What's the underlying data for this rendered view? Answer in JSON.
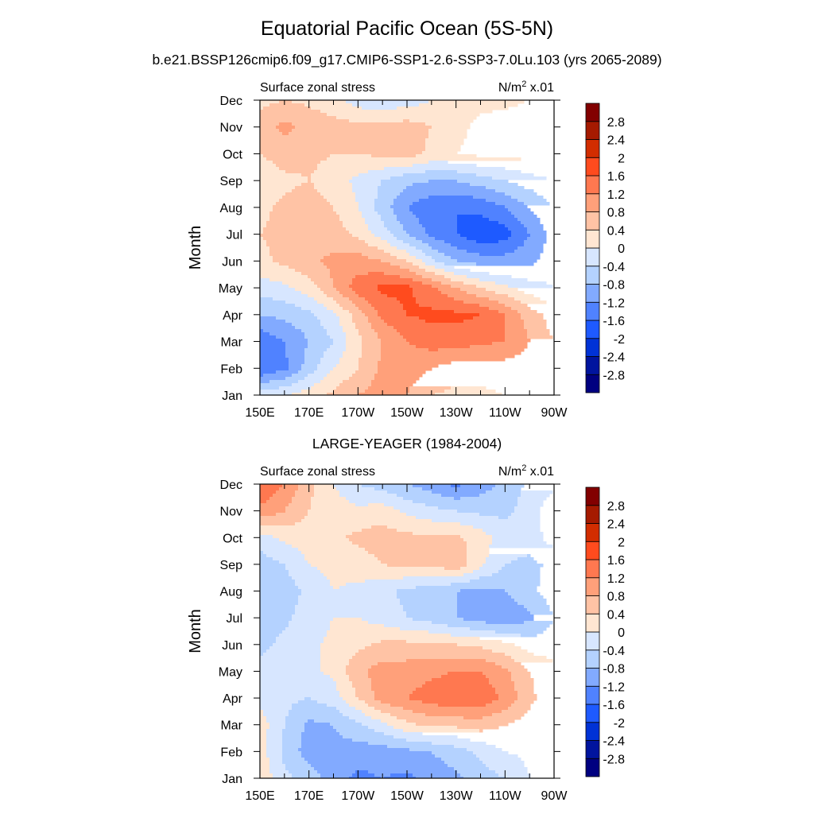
{
  "title": "Equatorial Pacific Ocean (5S-5N)",
  "subtitle": "b.e21.BSSP126cmip6.f09_g17.CMIP6-SSP1-2.6-SSP3-7.0Lu.103 (yrs 2065-2089)",
  "chart_data": [
    {
      "type": "heatmap",
      "title": "",
      "left_label": "Surface zonal stress",
      "units": "N/m",
      "units_sup": "2",
      "units_suffix": " x.01",
      "xlabel": "",
      "ylabel": "Month",
      "x_lon_east": [
        150,
        160,
        170,
        180,
        190,
        200,
        210,
        220,
        230,
        240,
        250,
        260,
        270
      ],
      "x_tick_labels": [
        "150E",
        "170E",
        "170W",
        "150W",
        "130W",
        "110W",
        "90W"
      ],
      "y_tick_labels": [
        "Jan",
        "Feb",
        "Mar",
        "Apr",
        "May",
        "Jun",
        "Jul",
        "Aug",
        "Sep",
        "Oct",
        "Nov",
        "Dec"
      ],
      "levels": [
        -2.8,
        -2.4,
        -2,
        -1.6,
        -1.2,
        -0.8,
        -0.4,
        0,
        0.4,
        0.8,
        1.2,
        1.6,
        2,
        2.4,
        2.8
      ],
      "values": [
        [
          -0.2,
          0.0,
          0.2,
          0.5,
          0.8,
          1.0,
          0.8,
          0.4,
          0.3,
          0.3,
          0.4,
          0.5,
          0.4
        ],
        [
          -1.6,
          -1.3,
          -0.6,
          0.0,
          0.4,
          0.9,
          1.0,
          0.8,
          0.6,
          0.6,
          0.6,
          0.6,
          0.4
        ],
        [
          -1.5,
          -1.2,
          -0.8,
          -0.4,
          0.3,
          0.8,
          1.2,
          1.4,
          1.4,
          1.3,
          1.2,
          0.8,
          0.4
        ],
        [
          -0.8,
          -0.7,
          -0.5,
          -0.1,
          0.6,
          1.3,
          1.6,
          1.7,
          1.7,
          1.6,
          1.2,
          0.6,
          0.2
        ],
        [
          -0.2,
          -0.1,
          0.2,
          0.8,
          1.4,
          1.7,
          1.7,
          1.3,
          0.8,
          0.4,
          0.1,
          -0.2,
          -0.4
        ],
        [
          0.3,
          0.5,
          0.7,
          0.9,
          1.0,
          0.8,
          0.4,
          -0.3,
          -0.8,
          -1.0,
          -1.0,
          -0.9,
          -0.6
        ],
        [
          0.4,
          0.5,
          0.7,
          0.6,
          0.3,
          -0.2,
          -0.8,
          -1.3,
          -1.6,
          -1.9,
          -1.8,
          -1.2,
          -0.6
        ],
        [
          0.3,
          0.5,
          0.6,
          0.4,
          0.0,
          -0.6,
          -1.2,
          -1.5,
          -1.6,
          -1.5,
          -1.2,
          -0.8,
          -0.4
        ],
        [
          0.1,
          0.3,
          0.4,
          0.2,
          -0.1,
          -0.4,
          -0.7,
          -0.8,
          -0.8,
          -0.6,
          -0.4,
          -0.2,
          0.0
        ],
        [
          0.4,
          0.6,
          0.5,
          0.4,
          0.4,
          0.5,
          0.6,
          0.3,
          0.4,
          0.5,
          0.5,
          0.6,
          0.5
        ],
        [
          0.6,
          0.9,
          0.7,
          0.6,
          0.5,
          0.5,
          0.6,
          0.4,
          0.3,
          0.5,
          0.6,
          0.7,
          0.6
        ],
        [
          0.3,
          0.4,
          0.3,
          0.1,
          -0.2,
          -0.3,
          -0.2,
          0.0,
          0.2,
          0.3,
          0.3,
          0.4,
          0.4
        ]
      ]
    },
    {
      "type": "heatmap",
      "title": "LARGE-YEAGER (1984-2004)",
      "left_label": "Surface zonal stress",
      "units": "N/m",
      "units_sup": "2",
      "units_suffix": " x.01",
      "xlabel": "",
      "ylabel": "Month",
      "x_lon_east": [
        150,
        160,
        170,
        180,
        190,
        200,
        210,
        220,
        230,
        240,
        250,
        260,
        270
      ],
      "x_tick_labels": [
        "150E",
        "170E",
        "170W",
        "150W",
        "130W",
        "110W",
        "90W"
      ],
      "y_tick_labels": [
        "Jan",
        "Feb",
        "Mar",
        "Apr",
        "May",
        "Jun",
        "Jul",
        "Aug",
        "Sep",
        "Oct",
        "Nov",
        "Dec"
      ],
      "levels": [
        -2.8,
        -2.4,
        -2,
        -1.6,
        -1.2,
        -0.8,
        -0.4,
        0,
        0.4,
        0.8,
        1.2,
        1.6,
        2,
        2.4,
        2.8
      ],
      "values": [
        [
          0.3,
          -0.3,
          -0.6,
          -1.0,
          -1.3,
          -1.2,
          -1.3,
          -1.0,
          -0.9,
          -0.6,
          -0.4,
          0.0,
          0.2
        ],
        [
          0.2,
          -0.5,
          -1.0,
          -0.9,
          -1.0,
          -1.0,
          -0.9,
          -0.8,
          -0.6,
          -0.3,
          0.0,
          0.1,
          0.3
        ],
        [
          0.2,
          -0.4,
          -0.9,
          -0.8,
          -0.5,
          -0.1,
          0.3,
          0.5,
          0.5,
          0.6,
          0.4,
          0.2,
          0.2
        ],
        [
          -0.1,
          -0.3,
          -0.4,
          -0.2,
          0.4,
          1.0,
          1.2,
          1.4,
          1.6,
          1.5,
          1.1,
          0.5,
          0.1
        ],
        [
          -0.3,
          -0.2,
          -0.1,
          0.1,
          0.7,
          1.0,
          1.0,
          1.1,
          1.2,
          1.2,
          0.9,
          0.4,
          0.1
        ],
        [
          -0.5,
          -0.3,
          -0.1,
          0.1,
          0.3,
          0.5,
          0.5,
          0.5,
          0.4,
          0.3,
          0.1,
          -0.2,
          -0.2
        ],
        [
          -0.6,
          -0.5,
          -0.2,
          0.0,
          0.0,
          -0.2,
          -0.4,
          -0.6,
          -0.8,
          -1.0,
          -1.1,
          -0.9,
          -0.4
        ],
        [
          -0.8,
          -0.6,
          -0.3,
          0.0,
          -0.1,
          -0.3,
          -0.5,
          -0.6,
          -0.8,
          -0.9,
          -0.8,
          -0.5,
          -0.2
        ],
        [
          -0.6,
          -0.4,
          0.0,
          0.1,
          0.2,
          0.4,
          0.5,
          0.5,
          0.7,
          0.1,
          -0.4,
          -0.5,
          -0.3
        ],
        [
          -0.2,
          0.1,
          0.2,
          0.3,
          0.5,
          0.6,
          0.5,
          0.5,
          0.5,
          0.2,
          -0.2,
          -0.2,
          0.2
        ],
        [
          1.1,
          0.8,
          0.4,
          0.2,
          0.1,
          0.2,
          -0.1,
          -0.3,
          -0.4,
          -0.5,
          -0.5,
          -0.2,
          0.3
        ],
        [
          1.6,
          1.2,
          0.5,
          0.0,
          -0.4,
          -0.6,
          -0.8,
          -1.0,
          -1.3,
          -1.0,
          -0.7,
          -0.3,
          -0.1
        ]
      ]
    }
  ],
  "colors": {
    "palette": [
      "#000080",
      "#00149E",
      "#0032D6",
      "#1E5AFF",
      "#5082FF",
      "#82AAFF",
      "#B4D2FF",
      "#D7E6FF",
      "#FFE6D2",
      "#FFC3A5",
      "#FFA07A",
      "#FF7850",
      "#FF4B1E",
      "#D22D00",
      "#A51A00",
      "#820000"
    ]
  }
}
